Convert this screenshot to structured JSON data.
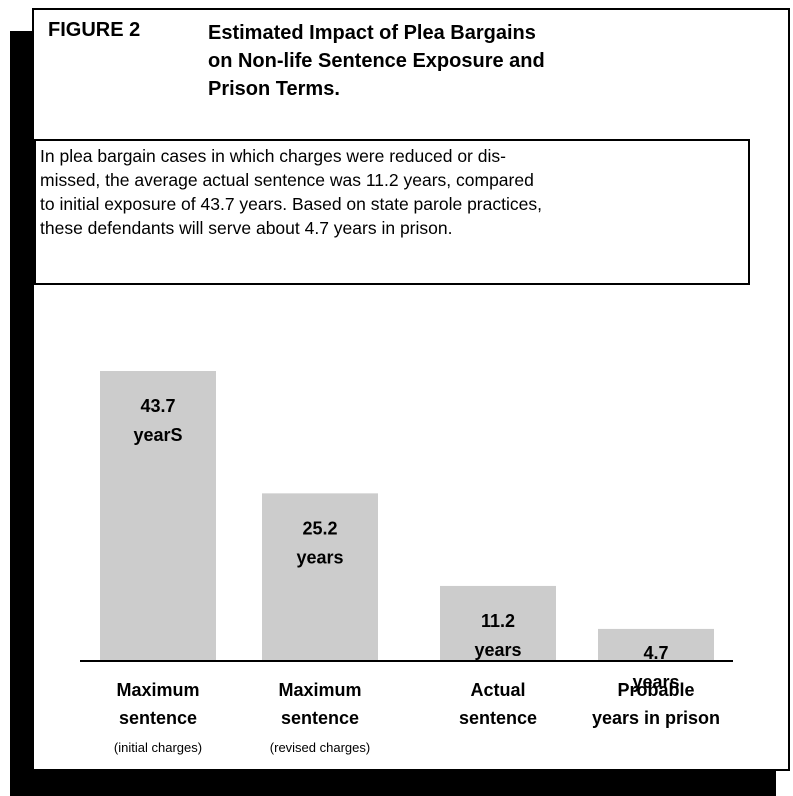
{
  "figure": {
    "label": "FIGURE 2",
    "title_lines": [
      "Estimated Impact of Plea Bargains",
      "on Non-life Sentence Exposure and",
      "Prison  Terms."
    ]
  },
  "description_lines": [
    "In plea bargain cases in which charges were reduced or dis-",
    "missed, the average actual sentence was 11.2 years, compared",
    "to initial exposure of 43.7 years. Based on state parole practices,",
    "these defendants will serve about 4.7 years in prison."
  ],
  "colors": {
    "bar": "#cccccc",
    "axis": "#000000",
    "text": "#000000"
  },
  "chart_data": {
    "type": "bar",
    "title": "Estimated Impact of Plea Bargains on Non-life Sentence Exposure and Prison  Terms.",
    "categories": [
      "Maximum sentence (initial charges)",
      "Maximum sentence (revised charges)",
      "Actual sentence",
      "Probable years in prison"
    ],
    "values": [
      43.7,
      25.2,
      11.2,
      4.7
    ],
    "bars": [
      {
        "value": 43.7,
        "value_label": "43.7",
        "unit_label": "yearS",
        "category_lines": [
          "Maximum",
          "sentence"
        ],
        "category_note": "(initial charges)"
      },
      {
        "value": 25.2,
        "value_label": "25.2",
        "unit_label": "years",
        "category_lines": [
          "Maximum",
          "sentence"
        ],
        "category_note": "(revised charges)"
      },
      {
        "value": 11.2,
        "value_label": "11.2",
        "unit_label": "years",
        "category_lines": [
          "Actual",
          "sentence"
        ],
        "category_note": ""
      },
      {
        "value": 4.7,
        "value_label": "4.7",
        "unit_label": "years",
        "category_lines": [
          "Probable",
          "years in prison"
        ],
        "category_note": ""
      }
    ],
    "ylim": [
      0,
      43.7
    ],
    "grid": false,
    "legend": "none"
  }
}
